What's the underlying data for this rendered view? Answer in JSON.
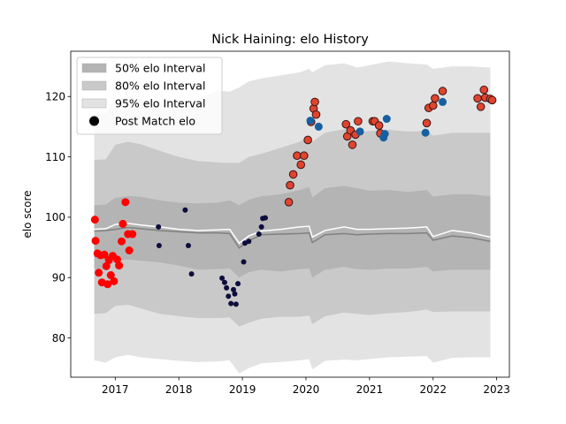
{
  "chart_data": {
    "type": "scatter",
    "title": "Nick Haining: elo History",
    "xlabel": "",
    "ylabel": "elo score",
    "xlim": [
      2016.3,
      2023.2
    ],
    "ylim": [
      73.5,
      127.5
    ],
    "x_ticks": [
      2017,
      2018,
      2019,
      2020,
      2021,
      2022,
      2023
    ],
    "x_tick_labels": [
      "2017",
      "2018",
      "2019",
      "2020",
      "2021",
      "2022",
      "2023"
    ],
    "y_ticks": [
      80,
      90,
      100,
      110,
      120
    ],
    "y_tick_labels": [
      "80",
      "90",
      "100",
      "110",
      "120"
    ],
    "grid": false,
    "legend_position": "top-left",
    "legend": [
      {
        "label": "50% elo Interval",
        "kind": "patch",
        "color": "#b4b4b4"
      },
      {
        "label": "80% elo Interval",
        "kind": "patch",
        "color": "#c9c9c9"
      },
      {
        "label": "95% elo Interval",
        "kind": "patch",
        "color": "#e3e3e3"
      },
      {
        "label": "Post Match elo",
        "kind": "marker",
        "color": "#000000"
      }
    ],
    "bands": {
      "x": [
        2016.67,
        2016.85,
        2017.0,
        2017.2,
        2017.4,
        2017.7,
        2018.0,
        2018.3,
        2018.6,
        2018.8,
        2018.95,
        2019.1,
        2019.3,
        2019.6,
        2019.9,
        2020.05,
        2020.1,
        2020.3,
        2020.6,
        2020.8,
        2021.0,
        2021.3,
        2021.6,
        2021.9,
        2022.0,
        2022.3,
        2022.6,
        2022.9
      ],
      "p95_low": [
        76.3,
        75.9,
        76.8,
        77.2,
        76.8,
        76.5,
        76.2,
        76.0,
        76.1,
        76.3,
        74.1,
        75.0,
        75.8,
        76.0,
        76.3,
        76.5,
        74.8,
        76.2,
        76.4,
        76.3,
        76.5,
        76.8,
        76.9,
        77.0,
        75.9,
        76.7,
        76.8,
        76.8
      ],
      "p80_low": [
        84.0,
        84.1,
        85.3,
        85.5,
        84.9,
        84.0,
        83.6,
        83.3,
        83.3,
        83.4,
        81.9,
        82.5,
        83.2,
        83.5,
        83.5,
        83.7,
        82.3,
        83.6,
        84.2,
        84.0,
        83.8,
        84.1,
        84.3,
        84.7,
        84.3,
        84.4,
        84.4,
        84.4
      ],
      "p50_low": [
        91.4,
        91.3,
        92.8,
        93.0,
        92.8,
        92.5,
        92.0,
        91.3,
        91.4,
        91.5,
        90.0,
        90.9,
        91.3,
        91.0,
        91.4,
        91.5,
        90.0,
        91.3,
        91.8,
        91.4,
        91.3,
        91.5,
        91.5,
        91.8,
        91.0,
        91.3,
        91.3,
        91.3
      ],
      "median": [
        97.7,
        97.8,
        98.0,
        98.3,
        98.1,
        97.8,
        97.6,
        97.4,
        97.4,
        97.3,
        94.9,
        96.1,
        97.1,
        97.2,
        97.3,
        97.4,
        95.8,
        97.1,
        97.3,
        97.1,
        97.2,
        97.3,
        97.3,
        97.4,
        96.2,
        96.9,
        96.6,
        96.0
      ],
      "mean": [
        98.0,
        98.1,
        98.8,
        99.0,
        98.7,
        98.4,
        98.0,
        97.8,
        97.9,
        98.0,
        95.7,
        96.9,
        97.7,
        98.0,
        98.4,
        98.5,
        96.7,
        97.8,
        98.4,
        98.0,
        98.0,
        98.1,
        98.2,
        98.4,
        96.8,
        97.8,
        97.4,
        96.7
      ],
      "p50_high": [
        102.0,
        102.1,
        103.2,
        103.5,
        103.4,
        102.8,
        102.4,
        102.3,
        102.4,
        102.8,
        102.0,
        102.9,
        103.5,
        103.8,
        104.5,
        105.0,
        103.3,
        104.8,
        105.2,
        104.8,
        104.4,
        104.5,
        104.2,
        104.5,
        103.4,
        103.8,
        103.8,
        103.5
      ],
      "p80_high": [
        109.5,
        109.6,
        112.0,
        112.5,
        112.1,
        111.0,
        110.0,
        109.3,
        109.1,
        109.0,
        109.0,
        110.0,
        110.5,
        111.5,
        112.5,
        113.5,
        112.5,
        114.0,
        114.6,
        114.0,
        114.3,
        114.5,
        114.2,
        114.3,
        113.5,
        114.0,
        114.0,
        114.0
      ],
      "p95_high": [
        117.0,
        117.2,
        119.5,
        120.0,
        119.6,
        118.5,
        118.8,
        119.5,
        121.0,
        120.8,
        121.5,
        122.5,
        123.0,
        123.5,
        124.0,
        124.6,
        124.0,
        125.2,
        125.5,
        124.8,
        125.2,
        125.8,
        125.5,
        125.3,
        124.6,
        125.0,
        125.0,
        124.8
      ]
    },
    "series": [
      {
        "color": "#ff0000",
        "outline": "#ff0000",
        "points": [
          [
            2016.68,
            99.6
          ],
          [
            2016.69,
            96.1
          ],
          [
            2016.72,
            94.0
          ],
          [
            2016.74,
            90.8
          ],
          [
            2016.77,
            93.7
          ],
          [
            2016.79,
            89.2
          ],
          [
            2016.83,
            93.8
          ],
          [
            2016.86,
            91.9
          ],
          [
            2016.88,
            88.9
          ],
          [
            2016.9,
            92.9
          ],
          [
            2016.93,
            90.4
          ],
          [
            2016.96,
            93.6
          ],
          [
            2016.98,
            89.4
          ],
          [
            2017.03,
            93.0
          ],
          [
            2017.06,
            92.0
          ],
          [
            2017.1,
            96.0
          ],
          [
            2017.12,
            98.9
          ],
          [
            2017.16,
            102.5
          ],
          [
            2017.2,
            97.2
          ],
          [
            2017.22,
            94.5
          ],
          [
            2017.27,
            97.2
          ]
        ]
      },
      {
        "color": "#0d0d3d",
        "outline": "#0d0d3d",
        "points": [
          [
            2017.68,
            98.4
          ],
          [
            2017.69,
            95.3
          ],
          [
            2018.1,
            101.2
          ],
          [
            2018.15,
            95.3
          ],
          [
            2018.2,
            90.6
          ],
          [
            2018.68,
            89.9
          ],
          [
            2018.72,
            89.2
          ],
          [
            2018.75,
            88.3
          ],
          [
            2018.78,
            86.9
          ],
          [
            2018.82,
            85.7
          ],
          [
            2018.86,
            88.0
          ],
          [
            2018.88,
            87.3
          ],
          [
            2018.9,
            85.6
          ],
          [
            2018.93,
            89.0
          ],
          [
            2019.02,
            92.6
          ],
          [
            2019.04,
            95.7
          ],
          [
            2019.1,
            96.0
          ],
          [
            2019.26,
            97.2
          ],
          [
            2019.3,
            98.4
          ],
          [
            2019.32,
            99.8
          ],
          [
            2019.36,
            99.9
          ]
        ]
      },
      {
        "color": "#e0442e",
        "outline": "#3a1515",
        "points": [
          [
            2019.73,
            102.5
          ],
          [
            2019.75,
            105.3
          ],
          [
            2019.8,
            107.1
          ],
          [
            2019.86,
            110.2
          ],
          [
            2019.92,
            108.7
          ],
          [
            2019.97,
            110.2
          ],
          [
            2020.03,
            112.8
          ],
          [
            2020.08,
            115.8
          ],
          [
            2020.12,
            118.0
          ],
          [
            2020.14,
            119.1
          ],
          [
            2020.16,
            117.0
          ],
          [
            2020.63,
            115.4
          ],
          [
            2020.65,
            113.4
          ],
          [
            2020.7,
            114.4
          ],
          [
            2020.73,
            112.0
          ],
          [
            2020.78,
            113.7
          ],
          [
            2020.82,
            115.9
          ],
          [
            2021.05,
            115.9
          ],
          [
            2021.08,
            115.9
          ],
          [
            2021.15,
            115.2
          ],
          [
            2021.17,
            113.9
          ],
          [
            2021.9,
            115.6
          ],
          [
            2021.93,
            118.1
          ],
          [
            2022.0,
            118.5
          ],
          [
            2022.03,
            119.7
          ],
          [
            2022.15,
            120.9
          ],
          [
            2022.7,
            119.7
          ],
          [
            2022.75,
            118.3
          ],
          [
            2022.8,
            121.1
          ],
          [
            2022.82,
            119.8
          ],
          [
            2022.9,
            119.6
          ],
          [
            2022.93,
            119.4
          ]
        ]
      },
      {
        "color": "#175fa0",
        "outline": "#175fa0",
        "points": [
          [
            2020.07,
            116.0
          ],
          [
            2020.2,
            115.0
          ],
          [
            2020.85,
            114.2
          ],
          [
            2021.22,
            113.2
          ],
          [
            2021.24,
            113.8
          ],
          [
            2021.27,
            116.3
          ],
          [
            2021.88,
            114.0
          ],
          [
            2022.15,
            119.1
          ]
        ]
      }
    ]
  }
}
